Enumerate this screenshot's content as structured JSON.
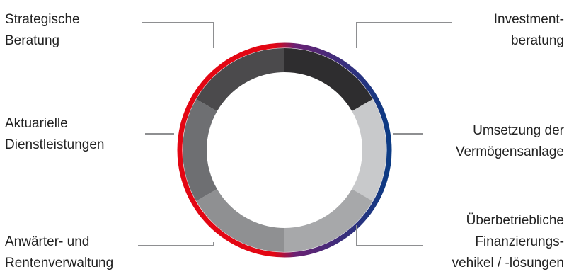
{
  "segments": [
    {
      "id": "investmentberatung",
      "lines": [
        "Investment-",
        "beratung"
      ],
      "color": "#2e2d2f"
    },
    {
      "id": "umsetzung",
      "lines": [
        "Umsetzung der",
        "Vermögensanlage"
      ],
      "color": "#c8c9cb"
    },
    {
      "id": "finanzierung",
      "lines": [
        "Überbetriebliche",
        "Finanzierungs-",
        "vehikel / -lösungen"
      ],
      "color": "#a7a8aa"
    },
    {
      "id": "rentenverwaltung",
      "lines": [
        "Anwärter- und",
        "Rentenverwaltung"
      ],
      "color": "#8f9092"
    },
    {
      "id": "aktuarielle",
      "lines": [
        "Aktuarielle",
        "Dienstleistungen"
      ],
      "color": "#6e6f72"
    },
    {
      "id": "strategische",
      "lines": [
        "Strategische",
        "Beratung"
      ],
      "color": "#4b4a4c"
    }
  ],
  "ring_colors": {
    "red": "#e30613",
    "purple": "#6a2173",
    "blue": "#0b3b84"
  },
  "leader_color": "#8e8f91"
}
